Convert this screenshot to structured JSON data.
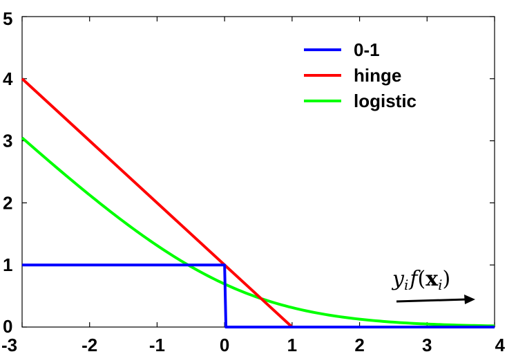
{
  "chart_data": {
    "type": "line",
    "title": "",
    "xlabel": "",
    "ylabel": "",
    "xlim": [
      -3,
      4
    ],
    "ylim": [
      0,
      5
    ],
    "x_ticks": [
      "-3",
      "-2",
      "-1",
      "0",
      "1",
      "2",
      "3",
      "4"
    ],
    "y_ticks": [
      "0",
      "1",
      "2",
      "3",
      "4",
      "5"
    ],
    "grid": false,
    "legend_position": "top-right",
    "annotation": {
      "text": "y_i f(x_i)",
      "arrow": "right"
    },
    "series": [
      {
        "name": "0-1",
        "color": "#0000ff",
        "points": [
          [
            -3,
            1
          ],
          [
            0,
            1
          ],
          [
            0.02,
            0
          ],
          [
            4,
            0
          ]
        ]
      },
      {
        "name": "hinge",
        "color": "#ff0000",
        "points": [
          [
            -3,
            4
          ],
          [
            1,
            0
          ],
          [
            4,
            0
          ]
        ]
      },
      {
        "name": "logistic",
        "color": "#00ff00",
        "points": [
          [
            -3,
            3.05
          ],
          [
            -2.5,
            2.58
          ],
          [
            -2,
            2.13
          ],
          [
            -1.5,
            1.7
          ],
          [
            -1,
            1.31
          ],
          [
            -0.5,
            0.97
          ],
          [
            0,
            0.69
          ],
          [
            0.5,
            0.47
          ],
          [
            1,
            0.31
          ],
          [
            1.5,
            0.2
          ],
          [
            2,
            0.13
          ],
          [
            2.5,
            0.08
          ],
          [
            3,
            0.05
          ],
          [
            3.5,
            0.03
          ],
          [
            4,
            0.02
          ]
        ]
      }
    ]
  }
}
